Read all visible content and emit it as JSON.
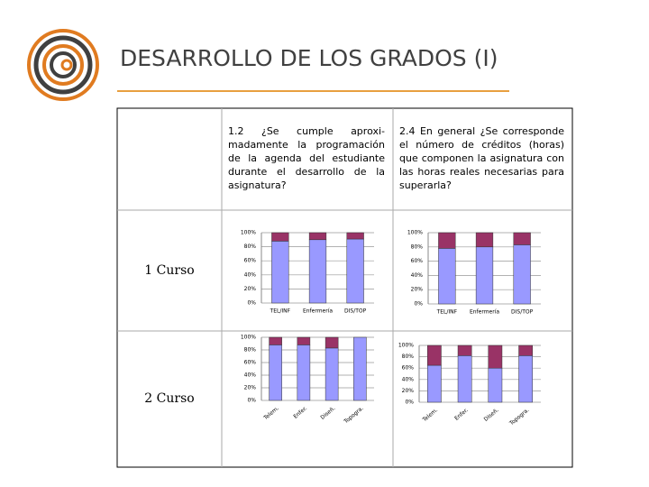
{
  "slide_title": "DESARROLLO DE LOS GRADOS (I)",
  "table": {
    "questions": [
      "1.2 ¿Se cumple aproxi-madamente la programación de la agenda del estudiante durante el desarrollo de la asignatura?",
      "2.4 En general ¿Se corresponde el número de créditos (horas) que componen la asignatura con las horas reales necesarias para superarla?"
    ],
    "rows": [
      "1 Curso",
      "2 Curso"
    ]
  },
  "chart_data": [
    {
      "type": "bar",
      "stacked": true,
      "categories": [
        "TEL/INF",
        "Enfermería",
        "DIS/TOP"
      ],
      "series": [
        {
          "color": "#9999ff",
          "values": [
            88,
            90,
            91
          ]
        },
        {
          "color": "#993366",
          "values": [
            12,
            10,
            9
          ]
        }
      ],
      "ylim": [
        0,
        100
      ],
      "yticks": [
        {
          "value": 0,
          "label": "0%"
        },
        {
          "value": 20,
          "label": "20%"
        },
        {
          "value": 40,
          "label": "40%"
        },
        {
          "value": 60,
          "label": "60%"
        },
        {
          "value": 80,
          "label": "80%"
        },
        {
          "value": 100,
          "label": "100%"
        }
      ],
      "grid": true
    },
    {
      "type": "bar",
      "stacked": true,
      "categories": [
        "TEL/INF",
        "Enfermería",
        "DIS/TOP"
      ],
      "series": [
        {
          "color": "#9999ff",
          "values": [
            78,
            80,
            83
          ]
        },
        {
          "color": "#993366",
          "values": [
            22,
            20,
            17
          ]
        }
      ],
      "ylim": [
        0,
        100
      ],
      "yticks": [
        {
          "value": 0,
          "label": "0%"
        },
        {
          "value": 20,
          "label": "20%"
        },
        {
          "value": 40,
          "label": "40%"
        },
        {
          "value": 60,
          "label": "60%"
        },
        {
          "value": 80,
          "label": "80%"
        },
        {
          "value": 100,
          "label": "100%"
        }
      ],
      "grid": true
    },
    {
      "type": "bar",
      "stacked": true,
      "categories": [
        "Telem.",
        "Enfer.",
        "Diseñ.",
        "Topogra."
      ],
      "series": [
        {
          "color": "#9999ff",
          "values": [
            88,
            88,
            83,
            100
          ]
        },
        {
          "color": "#993366",
          "values": [
            12,
            12,
            17,
            0
          ]
        }
      ],
      "ylim": [
        0,
        100
      ],
      "yticks": [
        {
          "value": 0,
          "label": "0%"
        },
        {
          "value": 20,
          "label": "20%"
        },
        {
          "value": 40,
          "label": "40%"
        },
        {
          "value": 60,
          "label": "60%"
        },
        {
          "value": 80,
          "label": "80%"
        },
        {
          "value": 100,
          "label": "100%"
        }
      ],
      "grid": true,
      "x_label_rotation": -40
    },
    {
      "type": "bar",
      "stacked": true,
      "categories": [
        "Telem.",
        "Enfer.",
        "Diseñ.",
        "Topogra."
      ],
      "series": [
        {
          "color": "#9999ff",
          "values": [
            65,
            82,
            60,
            82
          ]
        },
        {
          "color": "#993366",
          "values": [
            35,
            18,
            40,
            18
          ]
        }
      ],
      "ylim": [
        0,
        100
      ],
      "yticks": [
        {
          "value": 0,
          "label": "0%"
        },
        {
          "value": 20,
          "label": "20%"
        },
        {
          "value": 40,
          "label": "40%"
        },
        {
          "value": 60,
          "label": "60%"
        },
        {
          "value": 80,
          "label": "80%"
        },
        {
          "value": 100,
          "label": "100%"
        }
      ],
      "grid": true,
      "x_label_rotation": -40
    }
  ]
}
